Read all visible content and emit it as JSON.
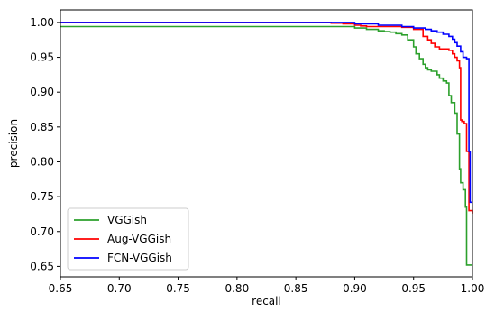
{
  "chart_data": {
    "type": "line",
    "title": "",
    "xlabel": "recall",
    "ylabel": "precision",
    "xlim": [
      0.65,
      1.0
    ],
    "ylim": [
      0.635,
      1.018
    ],
    "xticks": [
      0.65,
      0.7,
      0.75,
      0.8,
      0.85,
      0.9,
      0.95,
      1.0
    ],
    "xtick_labels": [
      "0.65",
      "0.70",
      "0.75",
      "0.80",
      "0.85",
      "0.90",
      "0.95",
      "1.00"
    ],
    "yticks": [
      0.65,
      0.7,
      0.75,
      0.8,
      0.85,
      0.9,
      0.95,
      1.0
    ],
    "ytick_labels": [
      "0.65",
      "0.70",
      "0.75",
      "0.80",
      "0.85",
      "0.90",
      "0.95",
      "1.00"
    ],
    "grid": false,
    "legend_position": "lower-left",
    "series": [
      {
        "name": "VGGish",
        "color": "#2ca02c",
        "x": [
          0.65,
          0.9,
          0.91,
          0.92,
          0.925,
          0.93,
          0.935,
          0.94,
          0.945,
          0.95,
          0.952,
          0.955,
          0.958,
          0.96,
          0.962,
          0.965,
          0.97,
          0.972,
          0.975,
          0.978,
          0.98,
          0.982,
          0.985,
          0.987,
          0.989,
          0.99,
          0.992,
          0.994,
          0.995,
          1.0
        ],
        "y": [
          0.994,
          0.992,
          0.99,
          0.988,
          0.987,
          0.986,
          0.984,
          0.982,
          0.975,
          0.965,
          0.955,
          0.948,
          0.94,
          0.935,
          0.932,
          0.93,
          0.925,
          0.92,
          0.916,
          0.913,
          0.895,
          0.885,
          0.87,
          0.84,
          0.79,
          0.77,
          0.76,
          0.735,
          0.652,
          0.652
        ]
      },
      {
        "name": "Aug-VGGish",
        "color": "#ff0000",
        "x": [
          0.65,
          0.875,
          0.88,
          0.89,
          0.9,
          0.905,
          0.91,
          0.94,
          0.95,
          0.958,
          0.962,
          0.965,
          0.968,
          0.972,
          0.975,
          0.98,
          0.983,
          0.985,
          0.987,
          0.989,
          0.99,
          0.991,
          0.993,
          0.995,
          0.997,
          1.0
        ],
        "y": [
          1.0,
          1.0,
          0.999,
          0.998,
          0.996,
          0.995,
          0.994,
          0.993,
          0.99,
          0.98,
          0.975,
          0.97,
          0.965,
          0.962,
          0.962,
          0.96,
          0.955,
          0.95,
          0.945,
          0.935,
          0.86,
          0.858,
          0.855,
          0.815,
          0.73,
          0.726
        ]
      },
      {
        "name": "FCN-VGGish",
        "color": "#0000ff",
        "x": [
          0.65,
          0.895,
          0.9,
          0.92,
          0.94,
          0.95,
          0.96,
          0.965,
          0.97,
          0.975,
          0.98,
          0.983,
          0.985,
          0.987,
          0.99,
          0.992,
          0.995,
          0.997,
          0.998,
          1.0
        ],
        "y": [
          1.0,
          1.0,
          0.998,
          0.996,
          0.994,
          0.992,
          0.99,
          0.988,
          0.986,
          0.983,
          0.98,
          0.976,
          0.971,
          0.966,
          0.958,
          0.95,
          0.948,
          0.815,
          0.742,
          0.742
        ]
      }
    ]
  }
}
